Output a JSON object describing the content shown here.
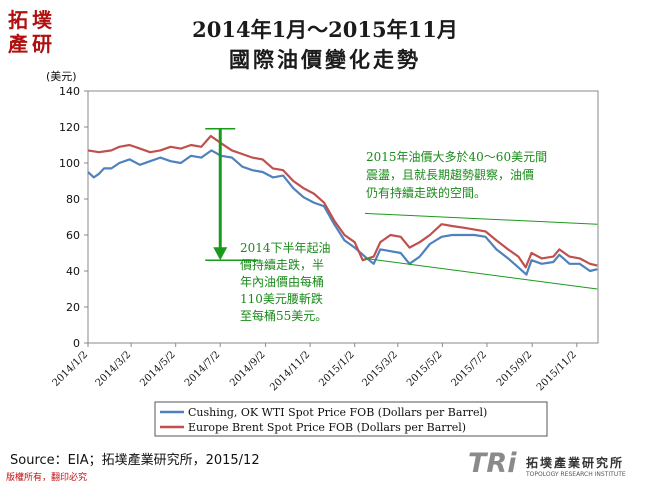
{
  "logo": {
    "chars": [
      "拓",
      "墣",
      "產",
      "研"
    ]
  },
  "chart_data": {
    "type": "line",
    "title_line1": "2014年1月～2015年11月",
    "title_line2": "國際油價變化走勢",
    "ylabel": "(美元)",
    "ylim": [
      0,
      140
    ],
    "yticks": [
      0,
      20,
      40,
      60,
      80,
      100,
      120,
      140
    ],
    "xlim": [
      "2014-01-02",
      "2015-12-01"
    ],
    "xticks": [
      {
        "date": "2014-01-02",
        "label": "2014/1/2"
      },
      {
        "date": "2014-03-02",
        "label": "2014/3/2"
      },
      {
        "date": "2014-05-02",
        "label": "2014/5/2"
      },
      {
        "date": "2014-07-02",
        "label": "2014/7/2"
      },
      {
        "date": "2014-09-02",
        "label": "2014/9/2"
      },
      {
        "date": "2014-11-02",
        "label": "2014/11/2"
      },
      {
        "date": "2015-01-02",
        "label": "2015/1/2"
      },
      {
        "date": "2015-03-02",
        "label": "2015/3/2"
      },
      {
        "date": "2015-05-02",
        "label": "2015/5/2"
      },
      {
        "date": "2015-07-02",
        "label": "2015/7/2"
      },
      {
        "date": "2015-09-02",
        "label": "2015/9/2"
      },
      {
        "date": "2015-11-02",
        "label": "2015/11/2"
      }
    ],
    "grid": false,
    "legend_position": "bottom",
    "series": [
      {
        "name": "Cushing, OK WTI Spot Price FOB (Dollars per Barrel)",
        "color": "#4f81bd",
        "points": [
          [
            "2014-01-02",
            95
          ],
          [
            "2014-01-10",
            92
          ],
          [
            "2014-01-17",
            94
          ],
          [
            "2014-01-24",
            97
          ],
          [
            "2014-02-03",
            97
          ],
          [
            "2014-02-14",
            100
          ],
          [
            "2014-02-28",
            102
          ],
          [
            "2014-03-14",
            99
          ],
          [
            "2014-03-28",
            101
          ],
          [
            "2014-04-11",
            103
          ],
          [
            "2014-04-25",
            101
          ],
          [
            "2014-05-09",
            100
          ],
          [
            "2014-05-23",
            104
          ],
          [
            "2014-06-06",
            103
          ],
          [
            "2014-06-20",
            107
          ],
          [
            "2014-07-03",
            104
          ],
          [
            "2014-07-18",
            103
          ],
          [
            "2014-08-01",
            98
          ],
          [
            "2014-08-15",
            96
          ],
          [
            "2014-08-29",
            95
          ],
          [
            "2014-09-12",
            92
          ],
          [
            "2014-09-26",
            93
          ],
          [
            "2014-10-10",
            86
          ],
          [
            "2014-10-24",
            81
          ],
          [
            "2014-11-07",
            78
          ],
          [
            "2014-11-21",
            76
          ],
          [
            "2014-12-05",
            66
          ],
          [
            "2014-12-19",
            57
          ],
          [
            "2015-01-02",
            53
          ],
          [
            "2015-01-16",
            48
          ],
          [
            "2015-01-28",
            44
          ],
          [
            "2015-02-06",
            52
          ],
          [
            "2015-02-20",
            51
          ],
          [
            "2015-03-06",
            50
          ],
          [
            "2015-03-18",
            44
          ],
          [
            "2015-04-01",
            48
          ],
          [
            "2015-04-15",
            55
          ],
          [
            "2015-05-01",
            59
          ],
          [
            "2015-05-15",
            60
          ],
          [
            "2015-06-01",
            60
          ],
          [
            "2015-06-15",
            60
          ],
          [
            "2015-06-30",
            59
          ],
          [
            "2015-07-15",
            52
          ],
          [
            "2015-07-31",
            47
          ],
          [
            "2015-08-14",
            42
          ],
          [
            "2015-08-25",
            38
          ],
          [
            "2015-09-01",
            46
          ],
          [
            "2015-09-15",
            44
          ],
          [
            "2015-10-01",
            45
          ],
          [
            "2015-10-09",
            49
          ],
          [
            "2015-10-23",
            44
          ],
          [
            "2015-11-06",
            44
          ],
          [
            "2015-11-20",
            40
          ],
          [
            "2015-11-30",
            41
          ]
        ]
      },
      {
        "name": "Europe Brent Spot Price FOB (Dollars per Barrel)",
        "color": "#c0504d",
        "points": [
          [
            "2014-01-02",
            107
          ],
          [
            "2014-01-17",
            106
          ],
          [
            "2014-02-03",
            107
          ],
          [
            "2014-02-14",
            109
          ],
          [
            "2014-02-28",
            110
          ],
          [
            "2014-03-14",
            108
          ],
          [
            "2014-03-28",
            106
          ],
          [
            "2014-04-11",
            107
          ],
          [
            "2014-04-25",
            109
          ],
          [
            "2014-05-09",
            108
          ],
          [
            "2014-05-23",
            110
          ],
          [
            "2014-06-06",
            109
          ],
          [
            "2014-06-19",
            115
          ],
          [
            "2014-07-03",
            111
          ],
          [
            "2014-07-18",
            107
          ],
          [
            "2014-08-01",
            105
          ],
          [
            "2014-08-15",
            103
          ],
          [
            "2014-08-29",
            102
          ],
          [
            "2014-09-12",
            97
          ],
          [
            "2014-09-26",
            96
          ],
          [
            "2014-10-10",
            90
          ],
          [
            "2014-10-24",
            86
          ],
          [
            "2014-11-07",
            83
          ],
          [
            "2014-11-21",
            78
          ],
          [
            "2014-12-05",
            68
          ],
          [
            "2014-12-19",
            60
          ],
          [
            "2015-01-02",
            56
          ],
          [
            "2015-01-13",
            46
          ],
          [
            "2015-01-28",
            48
          ],
          [
            "2015-02-06",
            56
          ],
          [
            "2015-02-20",
            60
          ],
          [
            "2015-03-06",
            59
          ],
          [
            "2015-03-18",
            53
          ],
          [
            "2015-04-01",
            56
          ],
          [
            "2015-04-15",
            60
          ],
          [
            "2015-05-01",
            66
          ],
          [
            "2015-05-15",
            65
          ],
          [
            "2015-06-01",
            64
          ],
          [
            "2015-06-15",
            63
          ],
          [
            "2015-06-30",
            62
          ],
          [
            "2015-07-15",
            57
          ],
          [
            "2015-07-31",
            52
          ],
          [
            "2015-08-14",
            48
          ],
          [
            "2015-08-24",
            42
          ],
          [
            "2015-09-01",
            50
          ],
          [
            "2015-09-15",
            47
          ],
          [
            "2015-10-01",
            48
          ],
          [
            "2015-10-09",
            52
          ],
          [
            "2015-10-23",
            48
          ],
          [
            "2015-11-06",
            47
          ],
          [
            "2015-11-20",
            44
          ],
          [
            "2015-11-30",
            43
          ]
        ]
      }
    ],
    "annotations": {
      "note_2015": [
        "2015年油價大多於40～60美元間",
        "震盪，且就長期趨勢觀察，油價",
        "仍有持續走跌的空間。"
      ],
      "note_2014h2": [
        "2014下半年起油",
        "價持續走跌，半",
        "年內油價由每桶",
        "110美元腰斬跌",
        "至每桶55美元。"
      ],
      "arrow": {
        "from_date": "2014-07-02",
        "from_value": 119,
        "to_value": 46,
        "color": "#1a9a1a"
      },
      "upper_trend": {
        "from": [
          "2015-01-16",
          72
        ],
        "to": [
          "2015-11-30",
          66
        ]
      },
      "lower_trend": {
        "from": [
          "2015-01-16",
          47
        ],
        "to": [
          "2015-11-30",
          30
        ]
      }
    }
  },
  "footer": {
    "source": "Source：EIA；拓墣產業研究所，2015/12",
    "copyright": "版權所有，翻印必究",
    "brand_tri": "TRi",
    "brand_cn": "拓墣產業研究所",
    "brand_en": "TOPOLOGY RESEARCH INSTITUTE"
  }
}
